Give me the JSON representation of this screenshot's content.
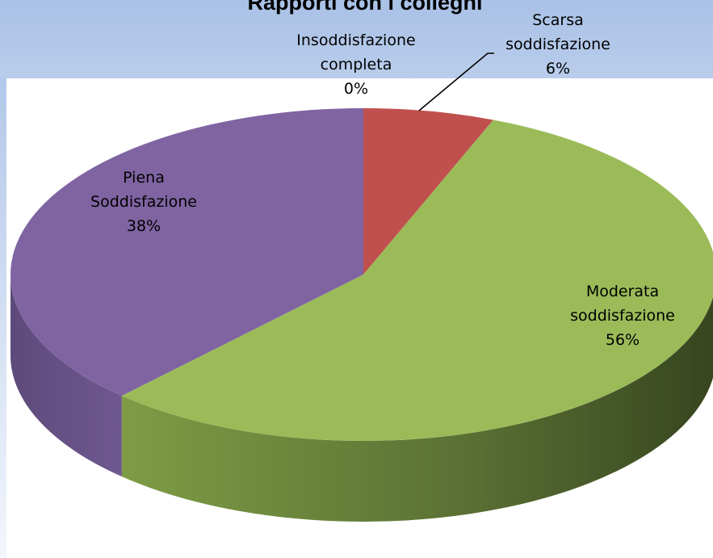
{
  "chart_data": {
    "type": "pie",
    "title": "Rapporti con i colleghi",
    "categories": [
      "Insoddisfazione completa",
      "Scarsa soddisfazione",
      "Moderata soddisfazione",
      "Piena Soddisfazione"
    ],
    "values": [
      0,
      6,
      56,
      38
    ],
    "labels": [
      {
        "lines": [
          "Insoddisfazione",
          "completa"
        ],
        "pct": "0%"
      },
      {
        "lines": [
          "Scarsa",
          "soddisfazione"
        ],
        "pct": "6%"
      },
      {
        "lines": [
          "Moderata",
          "soddisfazione"
        ],
        "pct": "56%"
      },
      {
        "lines": [
          "Piena",
          "Soddisfazione"
        ],
        "pct": "38%"
      }
    ],
    "colors": [
      "#4F81BD",
      "#C0504D",
      "#9BBB59",
      "#8064A2"
    ],
    "side_colors": [
      "#2E4D72",
      "#7A2F2D",
      "#5A6E31",
      "#5B4775"
    ],
    "style": "3d-pie",
    "legend": "none"
  }
}
